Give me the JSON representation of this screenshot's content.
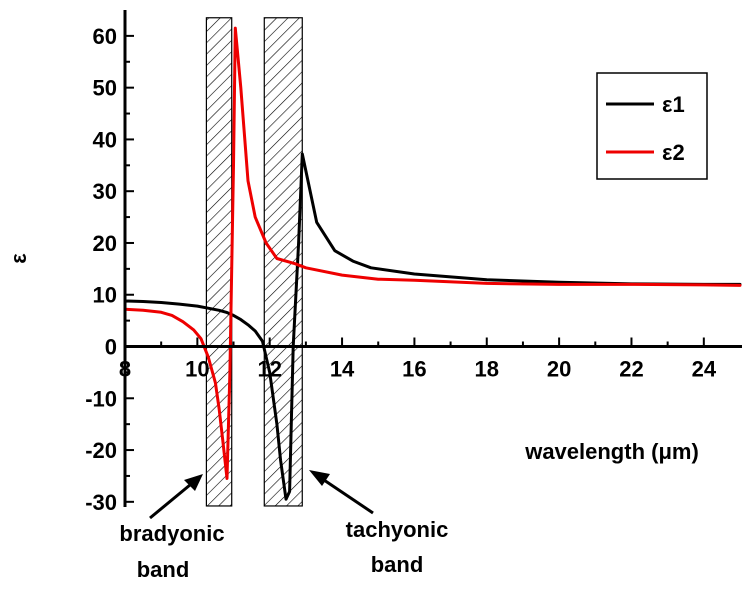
{
  "chart_data": {
    "type": "line",
    "xlabel": "wavelength (μm)",
    "ylabel": "ε",
    "xlim": [
      8,
      25
    ],
    "ylim": [
      -31,
      65
    ],
    "x_ticks": [
      8,
      10,
      12,
      14,
      16,
      18,
      20,
      22,
      24
    ],
    "x_tick_labels": [
      "8",
      "10",
      "12",
      "14",
      "16",
      "18",
      "20",
      "22",
      "24"
    ],
    "y_ticks": [
      -30,
      -20,
      -10,
      0,
      10,
      20,
      30,
      40,
      50,
      60
    ],
    "y_tick_labels": [
      "-30",
      "-20",
      "-10",
      "0",
      "10",
      "20",
      "30",
      "40",
      "50",
      "60"
    ],
    "legend_position": "top-right",
    "series": [
      {
        "name": "ε1",
        "color": "#000000",
        "x": [
          8,
          8.5,
          9,
          9.5,
          10,
          10.3,
          10.6,
          10.8,
          11.0,
          11.2,
          11.4,
          11.6,
          11.8,
          11.9,
          12.0,
          12.1,
          12.2,
          12.3,
          12.45,
          12.55,
          12.65,
          12.8,
          12.9,
          13.3,
          13.8,
          14.3,
          14.8,
          16,
          18,
          20,
          22,
          24,
          25
        ],
        "y": [
          8.8,
          8.7,
          8.5,
          8.2,
          7.8,
          7.4,
          7.0,
          6.6,
          6.0,
          5.2,
          4.2,
          3.0,
          1.0,
          -2.0,
          -5.0,
          -10.0,
          -15.0,
          -22.0,
          -29.5,
          -28.0,
          0.0,
          20.0,
          37.2,
          24.0,
          18.5,
          16.5,
          15.2,
          14.0,
          12.9,
          12.4,
          12.1,
          12.0,
          12.0
        ]
      },
      {
        "name": "ε2",
        "color": "#ee0000",
        "x": [
          8,
          8.5,
          9,
          9.3,
          9.6,
          9.9,
          10.1,
          10.3,
          10.5,
          10.6,
          10.7,
          10.82,
          10.9,
          11.0,
          11.05,
          11.2,
          11.4,
          11.6,
          11.9,
          12.2,
          12.7,
          13,
          14,
          15,
          16,
          18,
          20,
          22,
          24,
          25
        ],
        "y": [
          7.2,
          7.0,
          6.6,
          6.0,
          4.8,
          3.2,
          1.5,
          -2.0,
          -7.0,
          -12.0,
          -18.0,
          -25.5,
          -5.0,
          35.0,
          61.5,
          50.0,
          32.0,
          25.0,
          20.0,
          17.0,
          16.0,
          15.2,
          13.8,
          13.0,
          12.8,
          12.2,
          12.0,
          12.0,
          11.9,
          11.8
        ]
      }
    ],
    "bands": [
      {
        "x_start": 10.25,
        "x_end": 10.95,
        "y_start": -30.8,
        "y_end": 63.5
      },
      {
        "x_start": 11.85,
        "x_end": 12.9,
        "y_start": -30.8,
        "y_end": 63.5
      }
    ],
    "annotations": [
      {
        "line1": "bradyonic",
        "line2": "band"
      },
      {
        "line1": "tachyonic",
        "line2": "band"
      }
    ]
  }
}
